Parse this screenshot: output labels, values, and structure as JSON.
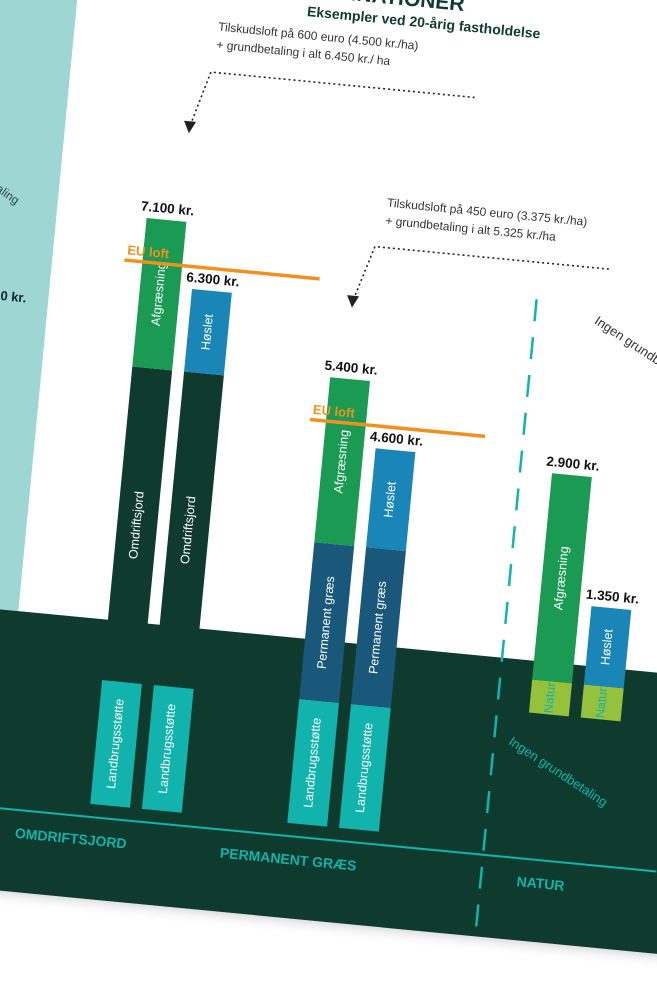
{
  "header": {
    "title": "INATIONER",
    "subtitle": "Eksempler ved 20-årig fastholdelse"
  },
  "left_panel": {
    "partial_label": "betaling",
    "partial_value": "0 kr."
  },
  "eu_cap_label": "EU loft",
  "annotations": {
    "cap_600_line1": "Tilskudsloft på 600 euro (4.500 kr./ha)",
    "cap_600_line2": "+ grundbetaling i alt 6.450 kr./ ha",
    "cap_450_line1": "Tilskudsloft på 450 euro (3.375 kr./ha)",
    "cap_450_line2": "+ grundbetaling i alt 5.325 kr./ha",
    "no_basic_payment_top": "Ingen grundbetaling",
    "no_basic_payment_bottom": "Ingen grundbetaling"
  },
  "colors": {
    "afgraesning": "#1a9a52",
    "hoslet": "#1a86b8",
    "omdriftsjord": "#0f3b2e",
    "permanent_graes": "#19577b",
    "landbrugsstotte": "#12b3ad",
    "natur": "#95c23d",
    "eu_line": "#f0911e",
    "ground": "#0f3b2e",
    "left_panel": "#9dd6d3"
  },
  "chart_data": {
    "type": "bar",
    "subtitle": "Eksempler ved 20-årig fastholdelse",
    "unit": "kr.",
    "ylim": [
      0,
      7100
    ],
    "groups": [
      {
        "label": "OMDRIFTSJORD",
        "eu_cap_label": "EU loft",
        "bars": [
          {
            "total_label": "7.100 kr.",
            "total": 7100,
            "segments": [
              {
                "name": "Landbrugsstøtte",
                "value": 1500
              },
              {
                "name": "Omdriftsjord",
                "value": 3800
              },
              {
                "name": "Afgræsning",
                "value": 1800
              }
            ]
          },
          {
            "total_label": "6.300 kr.",
            "total": 6300,
            "segments": [
              {
                "name": "Landbrugsstøtte",
                "value": 1500
              },
              {
                "name": "Omdriftsjord",
                "value": 3800
              },
              {
                "name": "Høslet",
                "value": 1000
              }
            ]
          }
        ]
      },
      {
        "label": "PERMANENT GRÆS",
        "eu_cap_label": "EU loft",
        "bars": [
          {
            "total_label": "5.400 kr.",
            "total": 5400,
            "segments": [
              {
                "name": "Landbrugsstøtte",
                "value": 1500
              },
              {
                "name": "Permanent græs",
                "value": 1900
              },
              {
                "name": "Afgræsning",
                "value": 2000
              }
            ]
          },
          {
            "total_label": "4.600 kr.",
            "total": 4600,
            "segments": [
              {
                "name": "Landbrugsstøtte",
                "value": 1500
              },
              {
                "name": "Permanent græs",
                "value": 1900
              },
              {
                "name": "Høslet",
                "value": 1200
              }
            ]
          }
        ]
      },
      {
        "label": "NATUR",
        "bars": [
          {
            "total_label": "2.900 kr.",
            "total": 2900,
            "segments": [
              {
                "name": "Natur",
                "value": 400
              },
              {
                "name": "Afgræsning",
                "value": 2500
              }
            ]
          },
          {
            "total_label": "1.350 kr.",
            "total": 1350,
            "segments": [
              {
                "name": "Natur",
                "value": 400
              },
              {
                "name": "Høslet",
                "value": 950
              }
            ]
          }
        ]
      }
    ]
  }
}
